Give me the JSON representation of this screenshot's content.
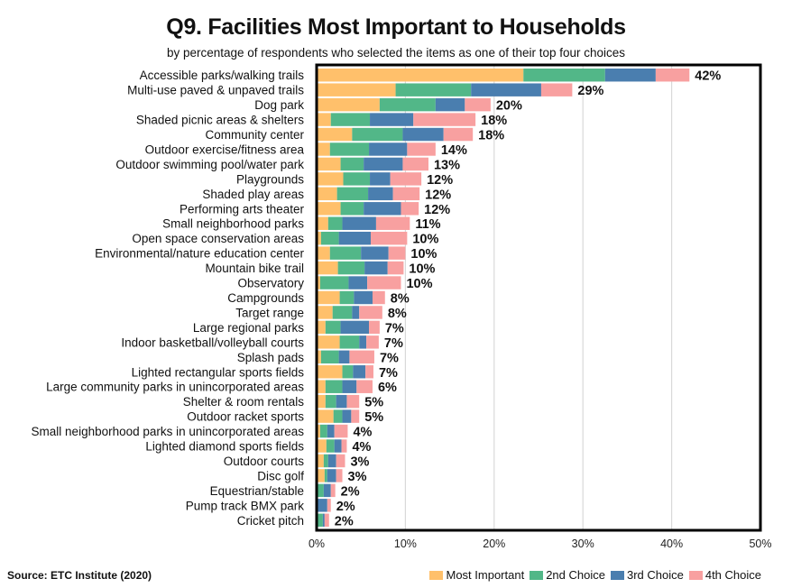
{
  "chart_data": {
    "type": "bar",
    "orientation": "horizontal",
    "stacked": true,
    "title": "Q9. Facilities Most Important to Households",
    "subtitle": "by percentage of respondents who selected the items as one of their top four choices",
    "xlabel": "",
    "ylabel": "",
    "xlim": [
      0,
      50
    ],
    "x_ticks": [
      "0%",
      "10%",
      "20%",
      "30%",
      "40%",
      "50%"
    ],
    "x_tick_values": [
      0,
      10,
      20,
      30,
      40,
      50
    ],
    "grid": true,
    "legend_position": "bottom-right",
    "categories": [
      "Accessible parks/walking trails",
      "Multi-use paved & unpaved trails",
      "Dog park",
      "Shaded picnic areas & shelters",
      "Community center",
      "Outdoor exercise/fitness area",
      "Outdoor swimming pool/water park",
      "Playgrounds",
      "Shaded play areas",
      "Performing arts theater",
      "Small neighborhood parks",
      "Open space conservation areas",
      "Environmental/nature education center",
      "Mountain bike trail",
      "Observatory",
      "Campgrounds",
      "Target range",
      "Large regional parks",
      "Indoor basketball/volleyball courts",
      "Splash pads",
      "Lighted rectangular sports fields",
      "Large community parks in unincorporated areas",
      "Shelter & room rentals",
      "Outdoor racket sports",
      "Small neighborhood parks in unincorporated areas",
      "Lighted diamond sports fields",
      "Outdoor courts",
      "Disc golf",
      "Equestrian/stable",
      "Pump track BMX park",
      "Cricket pitch"
    ],
    "series": [
      {
        "name": "Most Important",
        "color": "#FFC06B",
        "values": [
          23.3,
          8.9,
          7.1,
          1.6,
          4.0,
          1.5,
          2.7,
          3.0,
          2.3,
          2.7,
          1.3,
          0.5,
          1.5,
          2.4,
          0.4,
          2.6,
          1.8,
          1.0,
          2.6,
          0.5,
          2.9,
          1.0,
          1.0,
          1.9,
          0.4,
          1.1,
          0.8,
          0.9,
          0.1,
          0.0,
          0.0
        ]
      },
      {
        "name": "2nd Choice",
        "color": "#52B788",
        "values": [
          9.2,
          8.5,
          6.3,
          4.4,
          5.7,
          4.4,
          2.6,
          3.0,
          3.5,
          2.6,
          1.6,
          2.0,
          3.5,
          3.0,
          3.2,
          1.6,
          2.2,
          1.7,
          2.2,
          2.0,
          1.2,
          1.9,
          1.2,
          1.0,
          0.8,
          0.9,
          0.5,
          0.3,
          0.7,
          0.1,
          0.7
        ]
      },
      {
        "name": "3rd Choice",
        "color": "#4A7EAF",
        "values": [
          5.7,
          7.9,
          3.3,
          4.9,
          4.6,
          4.3,
          4.4,
          2.3,
          2.8,
          4.2,
          3.8,
          3.6,
          3.1,
          2.6,
          2.1,
          2.1,
          0.8,
          3.2,
          0.8,
          1.2,
          1.4,
          1.6,
          1.2,
          1.0,
          0.8,
          0.8,
          0.9,
          1.0,
          0.8,
          1.1,
          0.2
        ]
      },
      {
        "name": "4th Choice",
        "color": "#F8A0A0",
        "values": [
          3.8,
          3.5,
          2.9,
          7.0,
          3.3,
          3.2,
          2.9,
          3.5,
          3.0,
          2.0,
          3.8,
          4.1,
          1.9,
          1.8,
          3.8,
          1.4,
          2.6,
          1.2,
          1.4,
          2.8,
          0.9,
          1.8,
          1.4,
          0.9,
          1.5,
          0.6,
          1.0,
          0.7,
          0.5,
          0.4,
          0.5
        ]
      }
    ],
    "totals_labels": [
      "42%",
      "29%",
      "20%",
      "18%",
      "18%",
      "14%",
      "13%",
      "12%",
      "12%",
      "12%",
      "11%",
      "10%",
      "10%",
      "10%",
      "10%",
      "8%",
      "8%",
      "7%",
      "7%",
      "7%",
      "7%",
      "6%",
      "5%",
      "5%",
      "4%",
      "4%",
      "3%",
      "3%",
      "2%",
      "2%",
      "2%"
    ]
  },
  "footer": {
    "source": "Source:  ETC Institute (2020)"
  },
  "colors": {
    "gridline": "#D9D9D9",
    "frame": "#000000"
  }
}
